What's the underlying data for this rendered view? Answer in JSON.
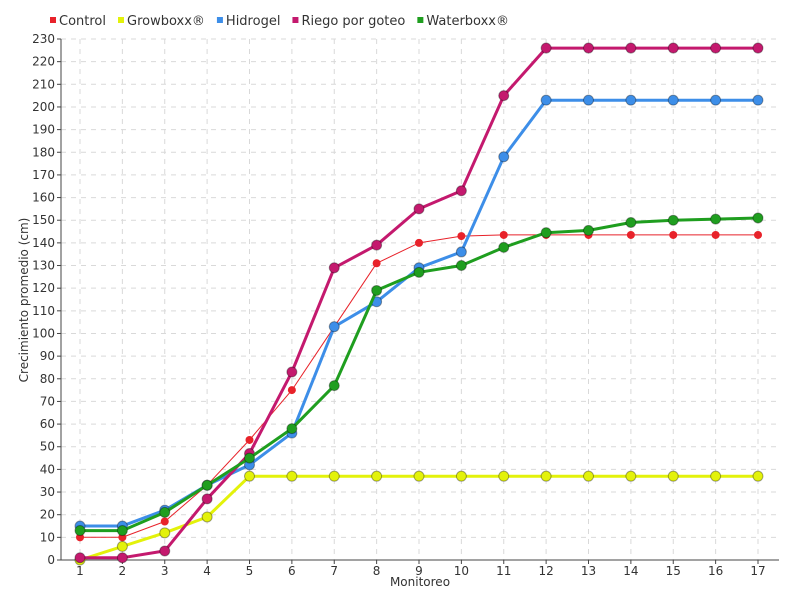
{
  "chart_data": {
    "type": "line",
    "title": "",
    "xlabel": "Monitoreo",
    "ylabel": "Crecimiento promedio (cm)",
    "categories": [
      1,
      2,
      3,
      4,
      5,
      6,
      7,
      8,
      9,
      10,
      11,
      12,
      13,
      14,
      15,
      16,
      17
    ],
    "ylim": [
      0,
      230
    ],
    "ytick_step": 10,
    "grid": true,
    "legend_position": "top-left",
    "series": [
      {
        "name": "Control",
        "color": "#e8222a",
        "values": [
          10,
          10,
          17,
          33,
          53,
          75,
          103,
          131,
          140,
          143,
          143.5,
          143.5,
          143.5,
          143.5,
          143.5,
          143.5,
          143.5
        ]
      },
      {
        "name": "Growboxx®",
        "color": "#e3f20a",
        "values": [
          0,
          6,
          12,
          19,
          37,
          37,
          37,
          37,
          37,
          37,
          37,
          37,
          37,
          37,
          37,
          37,
          37
        ]
      },
      {
        "name": "Hidrogel",
        "color": "#3d8ee8",
        "values": [
          15,
          15,
          22,
          33,
          42,
          56,
          103,
          114,
          129,
          136,
          178,
          203,
          203,
          203,
          203,
          203,
          203
        ]
      },
      {
        "name": "Riego por goteo",
        "color": "#c4196e",
        "values": [
          1,
          1,
          4,
          27,
          47,
          83,
          129,
          139,
          155,
          163,
          205,
          226,
          226,
          226,
          226,
          226,
          226
        ]
      },
      {
        "name": "Waterboxx®",
        "color": "#1f9e1f",
        "values": [
          13,
          13,
          21,
          33,
          45,
          58,
          77,
          119,
          127,
          130,
          138,
          144.5,
          145.5,
          149,
          150,
          150.5,
          151
        ]
      }
    ]
  }
}
